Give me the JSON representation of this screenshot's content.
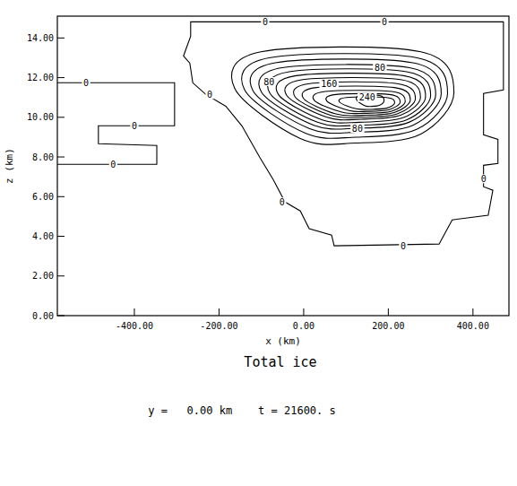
{
  "chart_data": {
    "type": "contour",
    "title": "Total ice",
    "subtitle": "y =   0.00 km    t = 21600. s",
    "x_label": "x (km)",
    "y_label": "z (km)",
    "xlim": [
      -582,
      485
    ],
    "ylim": [
      0,
      15.1
    ],
    "xticks": [
      {
        "value": -400,
        "label": "-400.00"
      },
      {
        "value": -200,
        "label": "-200.00"
      },
      {
        "value": 0,
        "label": "0.00"
      },
      {
        "value": 200,
        "label": "200.00"
      },
      {
        "value": 400,
        "label": "400.00"
      }
    ],
    "yticks": [
      {
        "value": 0,
        "label": "0.00"
      },
      {
        "value": 2,
        "label": "2.00"
      },
      {
        "value": 4,
        "label": "4.00"
      },
      {
        "value": 6,
        "label": "6.00"
      },
      {
        "value": 8,
        "label": "8.00"
      },
      {
        "value": 10,
        "label": "10.00"
      },
      {
        "value": 12,
        "label": "12.00"
      },
      {
        "value": 14,
        "label": "14.00"
      }
    ],
    "color": "#000000",
    "contours": [
      {
        "level": 0,
        "closed": true,
        "points": [
          [
            -267,
            14.81
          ],
          [
            472,
            14.81
          ],
          [
            472,
            11.38
          ],
          [
            425,
            11.2
          ],
          [
            425,
            9.12
          ],
          [
            459,
            8.89
          ],
          [
            459,
            7.67
          ],
          [
            425,
            7.58
          ],
          [
            425,
            6.5
          ],
          [
            447,
            6.32
          ],
          [
            436,
            5.06
          ],
          [
            351,
            4.83
          ],
          [
            320,
            3.61
          ],
          [
            72,
            3.52
          ],
          [
            66,
            4.06
          ],
          [
            13,
            4.38
          ],
          [
            -8,
            5.28
          ],
          [
            -44,
            5.73
          ],
          [
            -72,
            6.86
          ],
          [
            -104,
            7.99
          ],
          [
            -146,
            9.57
          ],
          [
            -184,
            10.56
          ],
          [
            -231,
            11.15
          ],
          [
            -262,
            11.74
          ],
          [
            -269,
            12.73
          ],
          [
            -284,
            13.09
          ],
          [
            -267,
            14.09
          ]
        ],
        "labels_at": [
          [
            -91,
            14.81
          ],
          [
            191,
            14.81
          ],
          [
            -222,
            11.15
          ],
          [
            -51,
            5.73
          ],
          [
            235,
            3.52
          ],
          [
            425,
            6.9
          ]
        ]
      },
      {
        "level": 0,
        "closed": false,
        "points": [
          [
            -582,
            11.74
          ],
          [
            -305,
            11.74
          ],
          [
            -305,
            9.57
          ],
          [
            -485,
            9.57
          ],
          [
            -485,
            8.67
          ],
          [
            -347,
            8.58
          ],
          [
            -347,
            7.63
          ],
          [
            -582,
            7.63
          ]
        ],
        "labels_at": [
          [
            -514,
            11.74
          ],
          [
            -400,
            9.57
          ],
          [
            -450,
            7.63
          ]
        ]
      },
      {
        "level": 20,
        "closed": true,
        "points": [
          [
            -163,
            11.46
          ],
          [
            -101,
            13.3
          ],
          [
            277,
            13.3
          ],
          [
            355,
            11.23
          ],
          [
            277,
            9.16
          ],
          [
            122,
            8.7
          ],
          [
            -8,
            8.93
          ]
        ]
      },
      {
        "level": 40,
        "closed": true,
        "points": [
          [
            -140,
            11.4
          ],
          [
            -82,
            13.0
          ],
          [
            268,
            13.0
          ],
          [
            340,
            11.2
          ],
          [
            268,
            9.4
          ],
          [
            124,
            9.0
          ],
          [
            4,
            9.2
          ]
        ]
      },
      {
        "level": 60,
        "closed": true,
        "points": [
          [
            -120,
            11.35
          ],
          [
            -67,
            12.75
          ],
          [
            258,
            12.75
          ],
          [
            325,
            11.18
          ],
          [
            258,
            9.6
          ],
          [
            125,
            9.25
          ],
          [
            14,
            9.43
          ]
        ]
      },
      {
        "level": 80,
        "closed": true,
        "points": [
          [
            -100,
            11.28
          ],
          [
            -51,
            12.5
          ],
          [
            250,
            12.5
          ],
          [
            312,
            11.13
          ],
          [
            250,
            9.76
          ],
          [
            127,
            9.45
          ],
          [
            24,
            9.6
          ]
        ],
        "labels_at": [
          [
            180,
            12.5
          ],
          [
            -82,
            11.8
          ],
          [
            127,
            9.45
          ]
        ]
      },
      {
        "level": 100,
        "closed": true,
        "points": [
          [
            -80,
            11.22
          ],
          [
            -34,
            12.3
          ],
          [
            243,
            12.3
          ],
          [
            300,
            11.09
          ],
          [
            243,
            9.87
          ],
          [
            129,
            9.6
          ],
          [
            34,
            9.74
          ]
        ]
      },
      {
        "level": 120,
        "closed": true,
        "points": [
          [
            -60,
            11.16
          ],
          [
            -18,
            12.1
          ],
          [
            236,
            12.1
          ],
          [
            288,
            11.04
          ],
          [
            236,
            9.99
          ],
          [
            131,
            9.75
          ],
          [
            44,
            9.87
          ]
        ]
      },
      {
        "level": 140,
        "closed": true,
        "points": [
          [
            -40,
            11.1
          ],
          [
            -2,
            11.9
          ],
          [
            229,
            11.9
          ],
          [
            276,
            11.0
          ],
          [
            229,
            10.1
          ],
          [
            134,
            9.9
          ],
          [
            55,
            10.0
          ]
        ]
      },
      {
        "level": 160,
        "closed": true,
        "points": [
          [
            -20,
            11.02
          ],
          [
            14,
            11.7
          ],
          [
            221,
            11.7
          ],
          [
            264,
            10.94
          ],
          [
            221,
            10.17
          ],
          [
            136,
            10.0
          ],
          [
            65,
            10.09
          ]
        ],
        "labels_at": [
          [
            60,
            11.7
          ]
        ]
      },
      {
        "level": 180,
        "closed": true,
        "points": [
          [
            0,
            10.94
          ],
          [
            30,
            11.5
          ],
          [
            214,
            11.5
          ],
          [
            252,
            10.87
          ],
          [
            214,
            10.24
          ],
          [
            139,
            10.1
          ],
          [
            76,
            10.17
          ]
        ]
      },
      {
        "level": 200,
        "closed": true,
        "points": [
          [
            25,
            10.86
          ],
          [
            51,
            11.3
          ],
          [
            208,
            11.3
          ],
          [
            240,
            10.81
          ],
          [
            208,
            10.31
          ],
          [
            143,
            10.2
          ],
          [
            90,
            10.26
          ]
        ]
      },
      {
        "level": 220,
        "closed": true,
        "points": [
          [
            55,
            10.81
          ],
          [
            76,
            11.15
          ],
          [
            202,
            11.15
          ],
          [
            228,
            10.77
          ],
          [
            202,
            10.39
          ],
          [
            150,
            10.3
          ],
          [
            107,
            10.34
          ]
        ]
      },
      {
        "level": 240,
        "closed": true,
        "points": [
          [
            85,
            10.76
          ],
          [
            101,
            11.0
          ],
          [
            196,
            11.0
          ],
          [
            215,
            10.73
          ],
          [
            196,
            10.46
          ],
          [
            157,
            10.4
          ],
          [
            124,
            10.43
          ]
        ],
        "labels_at": [
          [
            150,
            11.0
          ]
        ]
      },
      {
        "level": 260,
        "closed": true,
        "points": [
          [
            125,
            10.88
          ],
          [
            133,
            11.1
          ],
          [
            180,
            11.1
          ],
          [
            190,
            10.85
          ],
          [
            180,
            10.61
          ],
          [
            161,
            10.55
          ],
          [
            145,
            10.58
          ]
        ]
      }
    ]
  }
}
